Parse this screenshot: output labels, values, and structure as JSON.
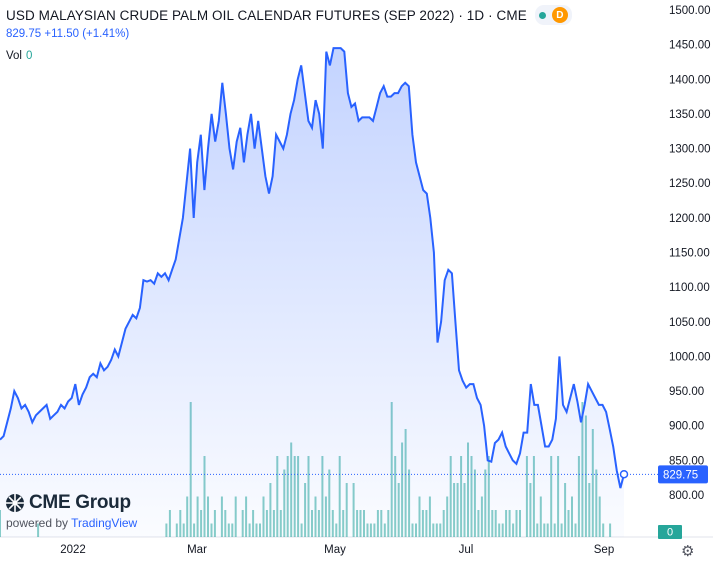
{
  "header": {
    "title": "USD MALAYSIAN CRUDE PALM OIL CALENDAR FUTURES (SEP 2022) · 1D · CME",
    "badge_letter": "D",
    "price_line": "829.75  +11.50 (+1.41%)",
    "vol_label": "Vol",
    "vol_value": "0"
  },
  "branding": {
    "logo": "CME Group",
    "powered_by": "powered by",
    "tradingview": "TradingView"
  },
  "settings_icon": "gear-icon",
  "colors": {
    "line": "#2962ff",
    "area_top": "rgba(41,98,255,0.28)",
    "area_bottom": "rgba(41,98,255,0.02)",
    "volume": "#26a69a",
    "last_price_label": "#2962ff"
  },
  "chart_data": {
    "type": "area",
    "title": "USD MALAYSIAN CRUDE PALM OIL CALENDAR FUTURES (SEP 2022) · 1D · CME",
    "xlabel": "",
    "ylabel": "",
    "x_ticks": [
      "2022",
      "Mar",
      "May",
      "Jul",
      "Sep"
    ],
    "y_ticks": [
      800,
      850,
      900,
      950,
      1000,
      1050,
      1100,
      1150,
      1200,
      1250,
      1300,
      1350,
      1400,
      1450,
      1500
    ],
    "ylim": [
      780,
      1510
    ],
    "last_value": 829.75,
    "last_label": "829.75",
    "volume_label": "0",
    "series": [
      {
        "values": [
          880,
          885,
          905,
          925,
          950,
          940,
          925,
          930,
          920,
          905,
          915,
          920,
          925,
          930,
          910,
          915,
          920,
          930,
          925,
          935,
          940,
          960,
          930,
          945,
          955,
          970,
          975,
          970,
          990,
          980,
          985,
          995,
          1010,
          1000,
          1020,
          1040,
          1050,
          1060,
          1055,
          1070,
          1110,
          1108,
          1110,
          1105,
          1120,
          1115,
          1120,
          1110,
          1125,
          1140,
          1170,
          1200,
          1250,
          1300,
          1200,
          1280,
          1320,
          1240,
          1300,
          1350,
          1310,
          1340,
          1395,
          1350,
          1300,
          1270,
          1310,
          1330,
          1280,
          1320,
          1350,
          1300,
          1340,
          1300,
          1260,
          1235,
          1260,
          1320,
          1310,
          1300,
          1320,
          1350,
          1370,
          1400,
          1420,
          1380,
          1340,
          1330,
          1370,
          1350,
          1300,
          1440,
          1420,
          1445,
          1445,
          1445,
          1440,
          1380,
          1360,
          1365,
          1340,
          1345,
          1345,
          1345,
          1340,
          1360,
          1380,
          1390,
          1375,
          1375,
          1380,
          1380,
          1390,
          1395,
          1390,
          1320,
          1280,
          1260,
          1240,
          1235,
          1200,
          1150,
          1020,
          1050,
          1110,
          1125,
          1120,
          1050,
          980,
          965,
          955,
          960,
          960,
          940,
          930,
          900,
          850,
          848,
          875,
          880,
          890,
          870,
          860,
          850,
          845,
          860,
          890,
          890,
          960,
          930,
          930,
          900,
          870,
          870,
          880,
          910,
          1000,
          930,
          920,
          940,
          960,
          935,
          905,
          930,
          960,
          950,
          940,
          930,
          930,
          920,
          895,
          870,
          835,
          810,
          830
        ]
      }
    ],
    "volume": [
      0,
      0,
      0,
      0,
      0,
      0,
      0,
      0,
      0,
      0,
      0,
      0,
      0,
      0,
      0,
      0,
      0,
      0,
      0,
      0,
      0,
      0,
      0,
      0,
      0,
      0,
      0,
      0,
      0,
      0,
      0,
      0,
      0,
      0,
      0,
      0,
      0,
      0,
      0,
      0,
      0,
      0,
      0,
      0,
      0,
      0,
      0,
      0,
      0,
      0,
      0,
      0,
      0,
      0,
      0,
      0,
      0,
      0,
      0,
      0,
      0,
      0,
      0,
      0,
      0,
      0,
      0,
      0,
      0,
      0,
      0,
      0,
      0,
      0,
      0,
      0,
      0,
      0,
      0,
      0,
      0,
      0,
      0,
      0,
      0,
      0,
      0,
      0,
      0,
      0,
      0,
      0,
      0,
      0,
      0,
      0,
      0,
      0,
      0,
      0,
      0,
      0,
      0,
      0,
      0,
      0,
      0,
      0,
      0,
      0,
      0,
      0,
      0,
      0,
      0,
      0,
      0,
      0,
      0,
      0,
      0,
      0,
      0,
      0,
      0,
      0,
      0,
      0,
      0,
      0,
      0,
      0,
      0,
      0,
      0,
      0,
      0,
      0,
      0,
      0,
      0,
      0,
      0,
      0,
      0,
      0,
      0,
      0,
      0,
      0,
      0,
      0,
      0,
      0,
      0,
      0,
      0,
      0,
      0,
      0,
      0,
      0,
      0,
      0,
      0,
      0,
      0,
      0,
      0,
      0,
      0,
      0,
      0,
      0,
      0,
      0,
      0,
      0,
      0,
      0,
      0,
      0,
      0,
      0,
      0,
      0,
      0,
      0,
      0,
      0,
      0,
      0,
      0,
      0,
      0,
      0,
      0,
      0,
      0,
      0,
      0,
      0,
      0
    ],
    "volume_visible": [
      2,
      0,
      0,
      0,
      0,
      0,
      0,
      0,
      0,
      0,
      0,
      1,
      0,
      0,
      0,
      0,
      0,
      0,
      0,
      0,
      0,
      0,
      0,
      0,
      0,
      0,
      0,
      0,
      0,
      0,
      0,
      0,
      0,
      0,
      0,
      0,
      0,
      0,
      0,
      0,
      0,
      0,
      0,
      0,
      0,
      0,
      0,
      0,
      1,
      2,
      0,
      1,
      2,
      1,
      3,
      10,
      1,
      3,
      2,
      6,
      3,
      1,
      2,
      0,
      3,
      2,
      1,
      1,
      3,
      0,
      2,
      3,
      1,
      2,
      1,
      1,
      3,
      2,
      4,
      2,
      6,
      2,
      5,
      6,
      7,
      6,
      6,
      1,
      4,
      6,
      2,
      3,
      2,
      6,
      3,
      5,
      2,
      1,
      6,
      2,
      4,
      0,
      4,
      2,
      2,
      2,
      1,
      1,
      1,
      2,
      2,
      1,
      2,
      10,
      6,
      4,
      7,
      8,
      5,
      1,
      1,
      3,
      2,
      2,
      3,
      1,
      1,
      1,
      2,
      3,
      6,
      4,
      4,
      6,
      4,
      7,
      6,
      5,
      2,
      3,
      5,
      6,
      2,
      2,
      1,
      1,
      2,
      2,
      1,
      2,
      2,
      0,
      6,
      4,
      6,
      1,
      3,
      1,
      1,
      6,
      1,
      6,
      1,
      4,
      2,
      3,
      1,
      6,
      10,
      9,
      4,
      8,
      5,
      3,
      1,
      0,
      1,
      0,
      0,
      0,
      0
    ]
  }
}
